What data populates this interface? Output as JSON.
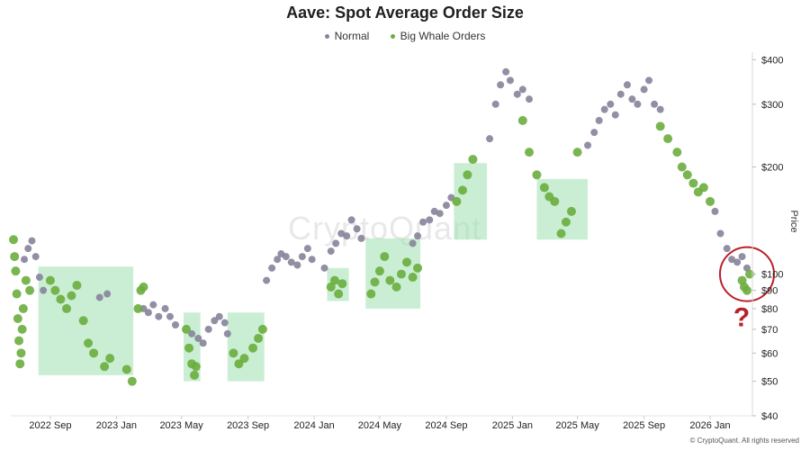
{
  "chart_data": {
    "type": "scatter",
    "title": "Aave: Spot Average Order Size",
    "ylabel": "Price",
    "y_scale": "log",
    "ylim": [
      40,
      420
    ],
    "xlim": [
      "2022-06-20",
      "2026-03-20"
    ],
    "legend_position": "top-center",
    "watermark": "CryptoQuant",
    "source": "© CryptoQuant. All rights reserved",
    "annotation_symbol": "?",
    "grid": false,
    "x_ticks": [
      {
        "label": "2022 Sep",
        "date": "2022-09-01"
      },
      {
        "label": "2023 Jan",
        "date": "2023-01-01"
      },
      {
        "label": "2023 May",
        "date": "2023-05-01"
      },
      {
        "label": "2023 Sep",
        "date": "2023-09-01"
      },
      {
        "label": "2024 Jan",
        "date": "2024-01-01"
      },
      {
        "label": "2024 May",
        "date": "2024-05-01"
      },
      {
        "label": "2024 Sep",
        "date": "2024-09-01"
      },
      {
        "label": "2025 Jan",
        "date": "2025-01-01"
      },
      {
        "label": "2025 May",
        "date": "2025-05-01"
      },
      {
        "label": "2025 Sep",
        "date": "2025-09-01"
      },
      {
        "label": "2026 Jan",
        "date": "2026-01-01"
      }
    ],
    "y_ticks": [
      {
        "label": "$400",
        "value": 400
      },
      {
        "label": "$300",
        "value": 300
      },
      {
        "label": "$200",
        "value": 200
      },
      {
        "label": "$100",
        "value": 100
      },
      {
        "label": "$90",
        "value": 90
      },
      {
        "label": "$80",
        "value": 80
      },
      {
        "label": "$70",
        "value": 70
      },
      {
        "label": "$60",
        "value": 60
      },
      {
        "label": "$50",
        "value": 50
      },
      {
        "label": "$40",
        "value": 40
      }
    ],
    "series": [
      {
        "name": "Normal",
        "color": "#86839a",
        "points": [
          [
            "2022-07-15",
            110
          ],
          [
            "2022-07-22",
            118
          ],
          [
            "2022-07-29",
            124
          ],
          [
            "2022-08-05",
            112
          ],
          [
            "2022-08-12",
            98
          ],
          [
            "2022-08-19",
            90
          ],
          [
            "2022-12-01",
            86
          ],
          [
            "2022-12-15",
            88
          ],
          [
            "2023-02-20",
            80
          ],
          [
            "2023-03-01",
            78
          ],
          [
            "2023-03-10",
            82
          ],
          [
            "2023-03-20",
            76
          ],
          [
            "2023-04-01",
            80
          ],
          [
            "2023-04-10",
            76
          ],
          [
            "2023-04-20",
            72
          ],
          [
            "2023-05-20",
            68
          ],
          [
            "2023-06-01",
            66
          ],
          [
            "2023-06-10",
            64
          ],
          [
            "2023-06-20",
            70
          ],
          [
            "2023-07-01",
            74
          ],
          [
            "2023-07-10",
            76
          ],
          [
            "2023-07-20",
            73
          ],
          [
            "2023-07-25",
            68
          ],
          [
            "2023-10-05",
            96
          ],
          [
            "2023-10-15",
            104
          ],
          [
            "2023-10-25",
            110
          ],
          [
            "2023-11-01",
            114
          ],
          [
            "2023-11-10",
            112
          ],
          [
            "2023-11-20",
            108
          ],
          [
            "2023-12-01",
            106
          ],
          [
            "2023-12-10",
            112
          ],
          [
            "2023-12-20",
            118
          ],
          [
            "2023-12-28",
            110
          ],
          [
            "2024-01-20",
            104
          ],
          [
            "2024-02-01",
            116
          ],
          [
            "2024-02-10",
            122
          ],
          [
            "2024-02-20",
            130
          ],
          [
            "2024-03-01",
            128
          ],
          [
            "2024-03-10",
            142
          ],
          [
            "2024-03-20",
            134
          ],
          [
            "2024-03-28",
            126
          ],
          [
            "2024-07-01",
            122
          ],
          [
            "2024-07-10",
            128
          ],
          [
            "2024-07-20",
            140
          ],
          [
            "2024-08-01",
            142
          ],
          [
            "2024-08-10",
            150
          ],
          [
            "2024-08-20",
            148
          ],
          [
            "2024-09-01",
            156
          ],
          [
            "2024-09-10",
            164
          ],
          [
            "2024-11-20",
            240
          ],
          [
            "2024-12-01",
            300
          ],
          [
            "2024-12-10",
            340
          ],
          [
            "2024-12-20",
            370
          ],
          [
            "2024-12-28",
            350
          ],
          [
            "2025-01-10",
            320
          ],
          [
            "2025-01-20",
            330
          ],
          [
            "2025-02-01",
            310
          ],
          [
            "2025-05-20",
            230
          ],
          [
            "2025-06-01",
            250
          ],
          [
            "2025-06-10",
            270
          ],
          [
            "2025-06-20",
            290
          ],
          [
            "2025-07-01",
            300
          ],
          [
            "2025-07-10",
            280
          ],
          [
            "2025-07-20",
            320
          ],
          [
            "2025-08-01",
            340
          ],
          [
            "2025-08-10",
            310
          ],
          [
            "2025-08-20",
            300
          ],
          [
            "2025-09-01",
            330
          ],
          [
            "2025-09-10",
            350
          ],
          [
            "2025-09-20",
            300
          ],
          [
            "2025-10-01",
            290
          ],
          [
            "2026-01-10",
            150
          ],
          [
            "2026-01-20",
            130
          ],
          [
            "2026-02-01",
            118
          ],
          [
            "2026-02-10",
            110
          ],
          [
            "2026-02-20",
            108
          ],
          [
            "2026-03-01",
            112
          ],
          [
            "2026-03-10",
            104
          ]
        ]
      },
      {
        "name": "Big Whale Orders",
        "color": "#6aad3d",
        "points": [
          [
            "2022-06-25",
            125
          ],
          [
            "2022-06-27",
            112
          ],
          [
            "2022-06-29",
            102
          ],
          [
            "2022-07-01",
            88
          ],
          [
            "2022-07-03",
            75
          ],
          [
            "2022-07-05",
            65
          ],
          [
            "2022-07-07",
            56
          ],
          [
            "2022-07-09",
            60
          ],
          [
            "2022-07-11",
            70
          ],
          [
            "2022-07-13",
            80
          ],
          [
            "2022-07-18",
            96
          ],
          [
            "2022-07-25",
            90
          ],
          [
            "2022-09-01",
            96
          ],
          [
            "2022-09-10",
            90
          ],
          [
            "2022-09-20",
            85
          ],
          [
            "2022-10-01",
            80
          ],
          [
            "2022-10-10",
            87
          ],
          [
            "2022-10-20",
            93
          ],
          [
            "2022-11-01",
            74
          ],
          [
            "2022-11-10",
            64
          ],
          [
            "2022-11-20",
            60
          ],
          [
            "2022-12-10",
            55
          ],
          [
            "2022-12-20",
            58
          ],
          [
            "2023-01-20",
            54
          ],
          [
            "2023-01-30",
            50
          ],
          [
            "2023-02-10",
            80
          ],
          [
            "2023-02-15",
            90
          ],
          [
            "2023-02-20",
            92
          ],
          [
            "2023-05-10",
            70
          ],
          [
            "2023-05-15",
            62
          ],
          [
            "2023-05-20",
            56
          ],
          [
            "2023-05-25",
            52
          ],
          [
            "2023-05-28",
            55
          ],
          [
            "2023-08-05",
            60
          ],
          [
            "2023-08-15",
            56
          ],
          [
            "2023-08-25",
            58
          ],
          [
            "2023-09-10",
            62
          ],
          [
            "2023-09-20",
            66
          ],
          [
            "2023-09-28",
            70
          ],
          [
            "2024-02-01",
            92
          ],
          [
            "2024-02-08",
            96
          ],
          [
            "2024-02-15",
            88
          ],
          [
            "2024-02-22",
            94
          ],
          [
            "2024-04-15",
            88
          ],
          [
            "2024-04-22",
            95
          ],
          [
            "2024-05-01",
            102
          ],
          [
            "2024-05-10",
            112
          ],
          [
            "2024-05-20",
            96
          ],
          [
            "2024-06-01",
            92
          ],
          [
            "2024-06-10",
            100
          ],
          [
            "2024-06-20",
            108
          ],
          [
            "2024-07-01",
            98
          ],
          [
            "2024-07-10",
            104
          ],
          [
            "2024-09-20",
            160
          ],
          [
            "2024-10-01",
            172
          ],
          [
            "2024-10-10",
            190
          ],
          [
            "2024-10-20",
            210
          ],
          [
            "2025-01-20",
            270
          ],
          [
            "2025-02-01",
            220
          ],
          [
            "2025-02-15",
            190
          ],
          [
            "2025-03-01",
            175
          ],
          [
            "2025-03-10",
            165
          ],
          [
            "2025-03-20",
            160
          ],
          [
            "2025-04-01",
            130
          ],
          [
            "2025-04-10",
            140
          ],
          [
            "2025-04-20",
            150
          ],
          [
            "2025-05-01",
            220
          ],
          [
            "2025-10-01",
            260
          ],
          [
            "2025-10-15",
            240
          ],
          [
            "2025-11-01",
            220
          ],
          [
            "2025-11-10",
            200
          ],
          [
            "2025-11-20",
            190
          ],
          [
            "2025-12-01",
            180
          ],
          [
            "2025-12-10",
            170
          ],
          [
            "2025-12-20",
            175
          ],
          [
            "2026-01-01",
            160
          ],
          [
            "2026-03-01",
            96
          ],
          [
            "2026-03-05",
            92
          ],
          [
            "2026-03-10",
            90
          ],
          [
            "2026-03-15",
            100
          ]
        ]
      }
    ],
    "highlight_boxes": [
      {
        "x0": "2022-08-10",
        "x1": "2023-02-01",
        "y0": 52,
        "y1": 105
      },
      {
        "x0": "2023-05-05",
        "x1": "2023-06-05",
        "y0": 50,
        "y1": 78
      },
      {
        "x0": "2023-07-25",
        "x1": "2023-10-01",
        "y0": 50,
        "y1": 78
      },
      {
        "x0": "2024-01-25",
        "x1": "2024-03-05",
        "y0": 84,
        "y1": 104
      },
      {
        "x0": "2024-04-05",
        "x1": "2024-07-15",
        "y0": 80,
        "y1": 126
      },
      {
        "x0": "2024-09-15",
        "x1": "2024-11-15",
        "y0": 125,
        "y1": 205
      },
      {
        "x0": "2025-02-15",
        "x1": "2025-05-20",
        "y0": 125,
        "y1": 185
      }
    ],
    "highlight_circle": {
      "x": "2026-03-10",
      "y": 100
    }
  }
}
